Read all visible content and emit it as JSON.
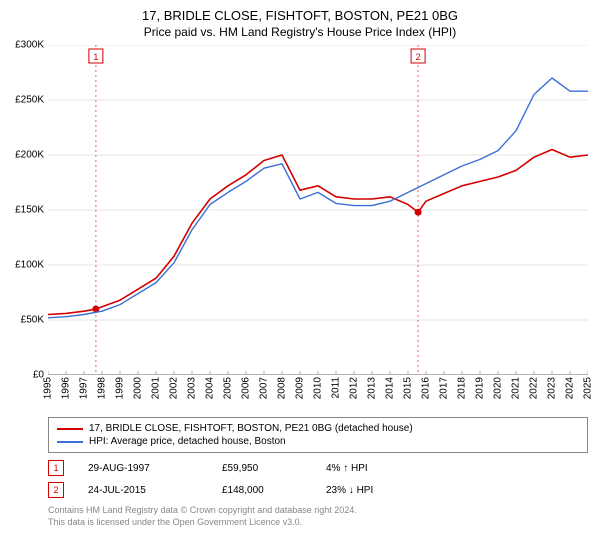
{
  "title_main": "17, BRIDLE CLOSE, FISHTOFT, BOSTON, PE21 0BG",
  "title_sub": "Price paid vs. HM Land Registry's House Price Index (HPI)",
  "chart": {
    "type": "line",
    "background_color": "#ffffff",
    "grid_color": "#e6e6e6",
    "tick_color": "#b0b0b0",
    "y_axis": {
      "min": 0,
      "max": 300000,
      "ticks": [
        0,
        50000,
        100000,
        150000,
        200000,
        250000,
        300000
      ],
      "tick_labels": [
        "£0",
        "£50K",
        "£100K",
        "£150K",
        "£200K",
        "£250K",
        "£300K"
      ]
    },
    "x_axis": {
      "min": 1995,
      "max": 2025,
      "ticks": [
        1995,
        1996,
        1997,
        1998,
        1999,
        2000,
        2001,
        2002,
        2003,
        2004,
        2005,
        2006,
        2007,
        2008,
        2009,
        2010,
        2011,
        2012,
        2013,
        2014,
        2015,
        2016,
        2017,
        2018,
        2019,
        2020,
        2021,
        2022,
        2023,
        2024,
        2025
      ]
    },
    "series": [
      {
        "name": "property",
        "label": "17, BRIDLE CLOSE, FISHTOFT, BOSTON, PE21 0BG (detached house)",
        "color": "#d40000",
        "line_width": 1.6,
        "data": [
          [
            1995,
            55000
          ],
          [
            1996,
            56000
          ],
          [
            1997,
            58000
          ],
          [
            1997.66,
            59950
          ],
          [
            1998,
            62000
          ],
          [
            1999,
            68000
          ],
          [
            2000,
            78000
          ],
          [
            2001,
            88000
          ],
          [
            2002,
            108000
          ],
          [
            2003,
            138000
          ],
          [
            2004,
            160000
          ],
          [
            2005,
            172000
          ],
          [
            2006,
            182000
          ],
          [
            2007,
            195000
          ],
          [
            2008,
            200000
          ],
          [
            2009,
            168000
          ],
          [
            2010,
            172000
          ],
          [
            2011,
            162000
          ],
          [
            2012,
            160000
          ],
          [
            2013,
            160000
          ],
          [
            2014,
            162000
          ],
          [
            2015,
            155000
          ],
          [
            2015.56,
            148000
          ],
          [
            2016,
            158000
          ],
          [
            2017,
            165000
          ],
          [
            2018,
            172000
          ],
          [
            2019,
            176000
          ],
          [
            2020,
            180000
          ],
          [
            2021,
            186000
          ],
          [
            2022,
            198000
          ],
          [
            2023,
            205000
          ],
          [
            2024,
            198000
          ],
          [
            2025,
            200000
          ]
        ]
      },
      {
        "name": "hpi",
        "label": "HPI: Average price, detached house, Boston",
        "color": "#3b6fd6",
        "line_width": 1.4,
        "data": [
          [
            1995,
            52000
          ],
          [
            1996,
            53000
          ],
          [
            1997,
            55000
          ],
          [
            1998,
            58000
          ],
          [
            1999,
            64000
          ],
          [
            2000,
            74000
          ],
          [
            2001,
            84000
          ],
          [
            2002,
            102000
          ],
          [
            2003,
            132000
          ],
          [
            2004,
            155000
          ],
          [
            2005,
            166000
          ],
          [
            2006,
            176000
          ],
          [
            2007,
            188000
          ],
          [
            2008,
            192000
          ],
          [
            2009,
            160000
          ],
          [
            2010,
            166000
          ],
          [
            2011,
            156000
          ],
          [
            2012,
            154000
          ],
          [
            2013,
            154000
          ],
          [
            2014,
            158000
          ],
          [
            2015,
            166000
          ],
          [
            2016,
            174000
          ],
          [
            2017,
            182000
          ],
          [
            2018,
            190000
          ],
          [
            2019,
            196000
          ],
          [
            2020,
            204000
          ],
          [
            2021,
            222000
          ],
          [
            2022,
            255000
          ],
          [
            2023,
            270000
          ],
          [
            2024,
            258000
          ],
          [
            2025,
            258000
          ]
        ]
      }
    ],
    "markers": [
      {
        "id": "1",
        "x": 1997.66,
        "y": 59950,
        "date": "29-AUG-1997",
        "price": "£59,950",
        "pct": "4% ↑ HPI",
        "color": "#d40000"
      },
      {
        "id": "2",
        "x": 2015.56,
        "y": 148000,
        "date": "24-JUL-2015",
        "price": "£148,000",
        "pct": "23% ↓ HPI",
        "color": "#d40000"
      }
    ]
  },
  "attribution": {
    "line1": "Contains HM Land Registry data © Crown copyright and database right 2024.",
    "line2": "This data is licensed under the Open Government Licence v3.0."
  }
}
